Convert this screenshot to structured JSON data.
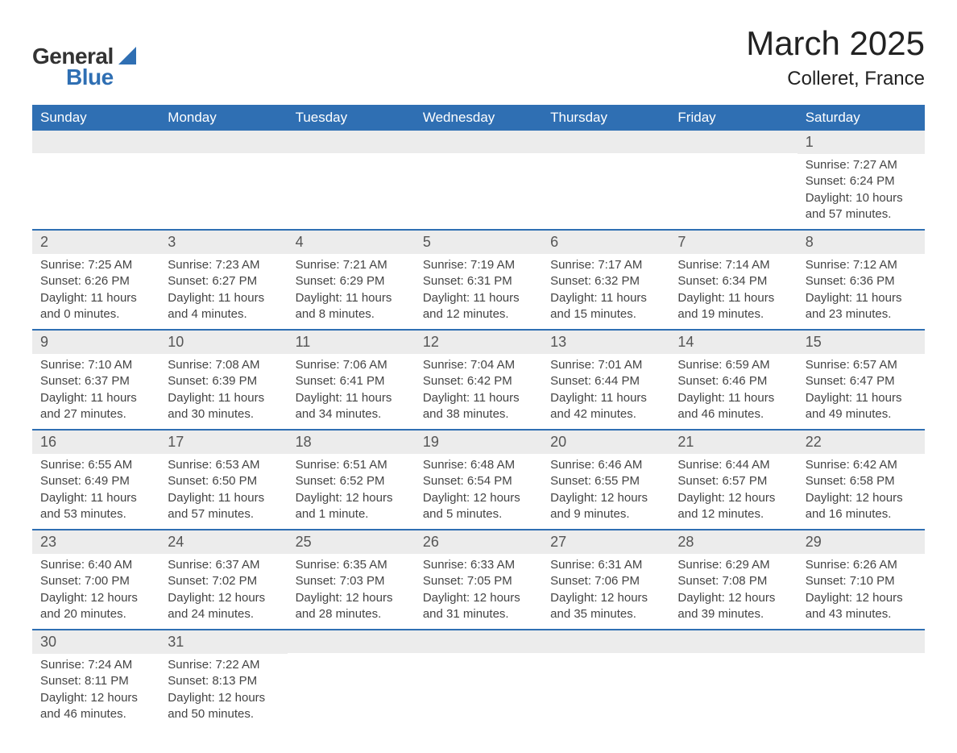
{
  "logo": {
    "general": "General",
    "blue": "Blue"
  },
  "title": "March 2025",
  "location": "Colleret, France",
  "colors": {
    "header_bg": "#2f6fb3",
    "header_text": "#ffffff",
    "daynum_bg": "#ececec",
    "border": "#2f6fb3",
    "text": "#444444"
  },
  "weekdays": [
    "Sunday",
    "Monday",
    "Tuesday",
    "Wednesday",
    "Thursday",
    "Friday",
    "Saturday"
  ],
  "labels": {
    "sunrise": "Sunrise:",
    "sunset": "Sunset:",
    "daylight": "Daylight:"
  },
  "weeks": [
    [
      {
        "empty": true
      },
      {
        "empty": true
      },
      {
        "empty": true
      },
      {
        "empty": true
      },
      {
        "empty": true
      },
      {
        "empty": true
      },
      {
        "n": "1",
        "sunrise": "7:27 AM",
        "sunset": "6:24 PM",
        "daylight": "10 hours and 57 minutes."
      }
    ],
    [
      {
        "n": "2",
        "sunrise": "7:25 AM",
        "sunset": "6:26 PM",
        "daylight": "11 hours and 0 minutes."
      },
      {
        "n": "3",
        "sunrise": "7:23 AM",
        "sunset": "6:27 PM",
        "daylight": "11 hours and 4 minutes."
      },
      {
        "n": "4",
        "sunrise": "7:21 AM",
        "sunset": "6:29 PM",
        "daylight": "11 hours and 8 minutes."
      },
      {
        "n": "5",
        "sunrise": "7:19 AM",
        "sunset": "6:31 PM",
        "daylight": "11 hours and 12 minutes."
      },
      {
        "n": "6",
        "sunrise": "7:17 AM",
        "sunset": "6:32 PM",
        "daylight": "11 hours and 15 minutes."
      },
      {
        "n": "7",
        "sunrise": "7:14 AM",
        "sunset": "6:34 PM",
        "daylight": "11 hours and 19 minutes."
      },
      {
        "n": "8",
        "sunrise": "7:12 AM",
        "sunset": "6:36 PM",
        "daylight": "11 hours and 23 minutes."
      }
    ],
    [
      {
        "n": "9",
        "sunrise": "7:10 AM",
        "sunset": "6:37 PM",
        "daylight": "11 hours and 27 minutes."
      },
      {
        "n": "10",
        "sunrise": "7:08 AM",
        "sunset": "6:39 PM",
        "daylight": "11 hours and 30 minutes."
      },
      {
        "n": "11",
        "sunrise": "7:06 AM",
        "sunset": "6:41 PM",
        "daylight": "11 hours and 34 minutes."
      },
      {
        "n": "12",
        "sunrise": "7:04 AM",
        "sunset": "6:42 PM",
        "daylight": "11 hours and 38 minutes."
      },
      {
        "n": "13",
        "sunrise": "7:01 AM",
        "sunset": "6:44 PM",
        "daylight": "11 hours and 42 minutes."
      },
      {
        "n": "14",
        "sunrise": "6:59 AM",
        "sunset": "6:46 PM",
        "daylight": "11 hours and 46 minutes."
      },
      {
        "n": "15",
        "sunrise": "6:57 AM",
        "sunset": "6:47 PM",
        "daylight": "11 hours and 49 minutes."
      }
    ],
    [
      {
        "n": "16",
        "sunrise": "6:55 AM",
        "sunset": "6:49 PM",
        "daylight": "11 hours and 53 minutes."
      },
      {
        "n": "17",
        "sunrise": "6:53 AM",
        "sunset": "6:50 PM",
        "daylight": "11 hours and 57 minutes."
      },
      {
        "n": "18",
        "sunrise": "6:51 AM",
        "sunset": "6:52 PM",
        "daylight": "12 hours and 1 minute."
      },
      {
        "n": "19",
        "sunrise": "6:48 AM",
        "sunset": "6:54 PM",
        "daylight": "12 hours and 5 minutes."
      },
      {
        "n": "20",
        "sunrise": "6:46 AM",
        "sunset": "6:55 PM",
        "daylight": "12 hours and 9 minutes."
      },
      {
        "n": "21",
        "sunrise": "6:44 AM",
        "sunset": "6:57 PM",
        "daylight": "12 hours and 12 minutes."
      },
      {
        "n": "22",
        "sunrise": "6:42 AM",
        "sunset": "6:58 PM",
        "daylight": "12 hours and 16 minutes."
      }
    ],
    [
      {
        "n": "23",
        "sunrise": "6:40 AM",
        "sunset": "7:00 PM",
        "daylight": "12 hours and 20 minutes."
      },
      {
        "n": "24",
        "sunrise": "6:37 AM",
        "sunset": "7:02 PM",
        "daylight": "12 hours and 24 minutes."
      },
      {
        "n": "25",
        "sunrise": "6:35 AM",
        "sunset": "7:03 PM",
        "daylight": "12 hours and 28 minutes."
      },
      {
        "n": "26",
        "sunrise": "6:33 AM",
        "sunset": "7:05 PM",
        "daylight": "12 hours and 31 minutes."
      },
      {
        "n": "27",
        "sunrise": "6:31 AM",
        "sunset": "7:06 PM",
        "daylight": "12 hours and 35 minutes."
      },
      {
        "n": "28",
        "sunrise": "6:29 AM",
        "sunset": "7:08 PM",
        "daylight": "12 hours and 39 minutes."
      },
      {
        "n": "29",
        "sunrise": "6:26 AM",
        "sunset": "7:10 PM",
        "daylight": "12 hours and 43 minutes."
      }
    ],
    [
      {
        "n": "30",
        "sunrise": "7:24 AM",
        "sunset": "8:11 PM",
        "daylight": "12 hours and 46 minutes."
      },
      {
        "n": "31",
        "sunrise": "7:22 AM",
        "sunset": "8:13 PM",
        "daylight": "12 hours and 50 minutes."
      },
      {
        "empty": true
      },
      {
        "empty": true
      },
      {
        "empty": true
      },
      {
        "empty": true
      },
      {
        "empty": true
      }
    ]
  ]
}
